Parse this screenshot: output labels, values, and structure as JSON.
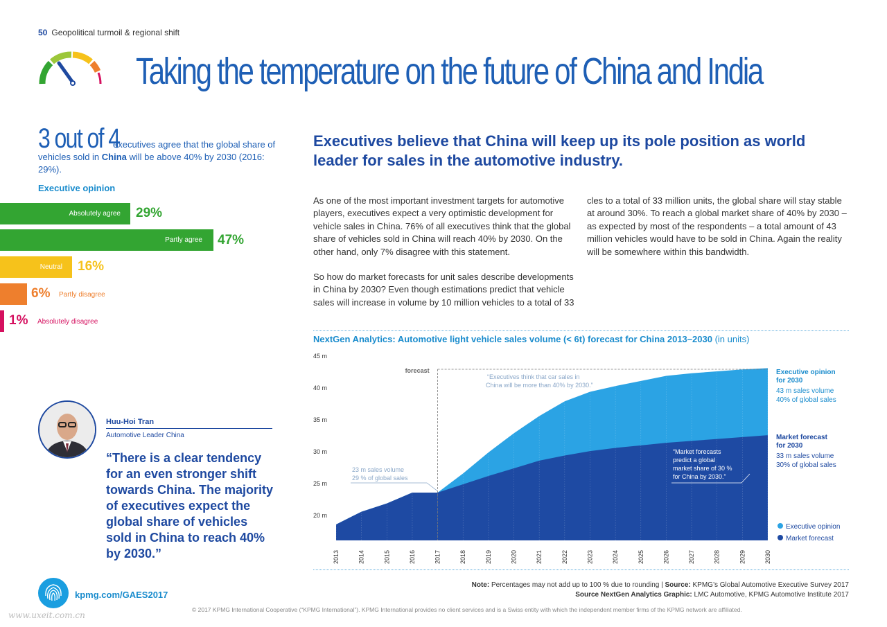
{
  "header": {
    "page_number": "50",
    "section": "Geopolitical turmoil & regional shift"
  },
  "title": "Taking the temperature on the future of China and India",
  "stat": {
    "big": "3 out of 4",
    "text_a": "executives agree that the global share of vehicles sold in ",
    "text_bold": "China",
    "text_b": " will be above 40% by 2030 (2016: 29%)."
  },
  "opinion": {
    "title": "Executive opinion",
    "bars": [
      {
        "label": "Absolutely agree",
        "pct": "29%",
        "value": 29,
        "color": "#33a532"
      },
      {
        "label": "Partly agree",
        "pct": "47%",
        "value": 47,
        "color": "#33a532"
      },
      {
        "label": "Neutral",
        "pct": "16%",
        "value": 16,
        "color": "#f6c21b"
      },
      {
        "label": "Partly disagree",
        "pct": "6%",
        "value": 6,
        "color": "#ee7f2d"
      },
      {
        "label": "Absolutely disagree",
        "pct": "1%",
        "value": 1,
        "color": "#d5105f"
      }
    ]
  },
  "headline": "Executives believe that China will keep up its pole position as world leader for sales in the automotive industry.",
  "body": {
    "p1": "As one of the most important investment targets for automotive players, executives expect a very optimistic development for vehicle sales in China. 76% of all executives think that the global share of vehicles sold in China will reach 40% by 2030. On the other hand, only 7% disagree with this statement.",
    "p2": "So how do market forecasts for unit sales describe developments in China by 2030? Even though estimations predict that vehicle sales will increase in volume by 10 million vehicles to a total of 33 million units, the global share will stay stable at around 30%. To reach a global market share of 40% by 2030 – as expected by most of the respondents – a total amount of 43 million vehicles would have to be sold in China. Again the reality will be somewhere within this bandwidth."
  },
  "person": {
    "name": "Huu-Hoi Tran",
    "role": "Automotive Leader China",
    "quote": "“There is a clear tendency for an even stronger shift towards China. The majority of executives expect the global share of vehicles sold in China to reach 40% by 2030.”"
  },
  "chart_data": {
    "type": "area",
    "title": "NextGen Analytics: Automotive light vehicle sales volume (< 6t) forecast for China 2013–2030",
    "title_unit": "(in units)",
    "x": [
      "2013",
      "2014",
      "2015",
      "2016",
      "2017",
      "2018",
      "2019",
      "2020",
      "2021",
      "2022",
      "2023",
      "2024",
      "2025",
      "2026",
      "2027",
      "2028",
      "2029",
      "2030"
    ],
    "y_ticks": [
      "20 m",
      "25 m",
      "30 m",
      "35 m",
      "40 m",
      "45 m"
    ],
    "ylim": [
      16,
      45
    ],
    "series": [
      {
        "name": "Executive opinion",
        "color": "#2ba3e4",
        "values": [
          18.5,
          20.5,
          21.8,
          23.5,
          23.5,
          26.5,
          29.8,
          32.8,
          35.5,
          37.8,
          39.3,
          40.2,
          41.0,
          41.8,
          42.2,
          42.5,
          42.8,
          43.0
        ]
      },
      {
        "name": "Market forecast",
        "color": "#1e4aa3",
        "values": [
          18.5,
          20.5,
          21.8,
          23.5,
          23.5,
          24.8,
          26.1,
          27.3,
          28.5,
          29.3,
          30.0,
          30.5,
          30.9,
          31.3,
          31.6,
          31.9,
          32.2,
          32.5
        ]
      }
    ],
    "forecast_label": "forecast",
    "annotations": {
      "exec_quote": "“Executives think that car sales in China will be more than 40% by 2030.”",
      "start": "23 m sales volume 29 % of global sales",
      "market_quote": "“Market forecasts predict a global market share of 30 % for China by 2030.”",
      "exec_end_title": "Executive opinion for 2030",
      "exec_end_l1": "43 m sales volume",
      "exec_end_l2": "40% of global sales",
      "market_end_title": "Market forecast for 2030",
      "market_end_l1": "33 m sales volume",
      "market_end_l2": "30% of global sales"
    },
    "legend": [
      "Executive opinion",
      "Market forecast"
    ]
  },
  "note": {
    "label": "Note:",
    "text": " Percentages may not add up to 100 % due to rounding | ",
    "source_label": "Source:",
    "source": " KPMG’s Global Automotive Executive Survey 2017",
    "source2_label": "Source NextGen Analytics Graphic:",
    "source2": " LMC Automotive, KPMG Automotive Institute 2017"
  },
  "url": "kpmg.com/GAES2017",
  "copyright": "© 2017 KPMG International Cooperative (“KPMG International”). KPMG International provides no client services and is a Swiss entity with which the independent member firms of the KPMG network are affiliated.",
  "watermark": "www.uxeit.com.cn",
  "colors": {
    "blue_dark": "#1e49a0",
    "blue_light": "#1a8ccd"
  }
}
